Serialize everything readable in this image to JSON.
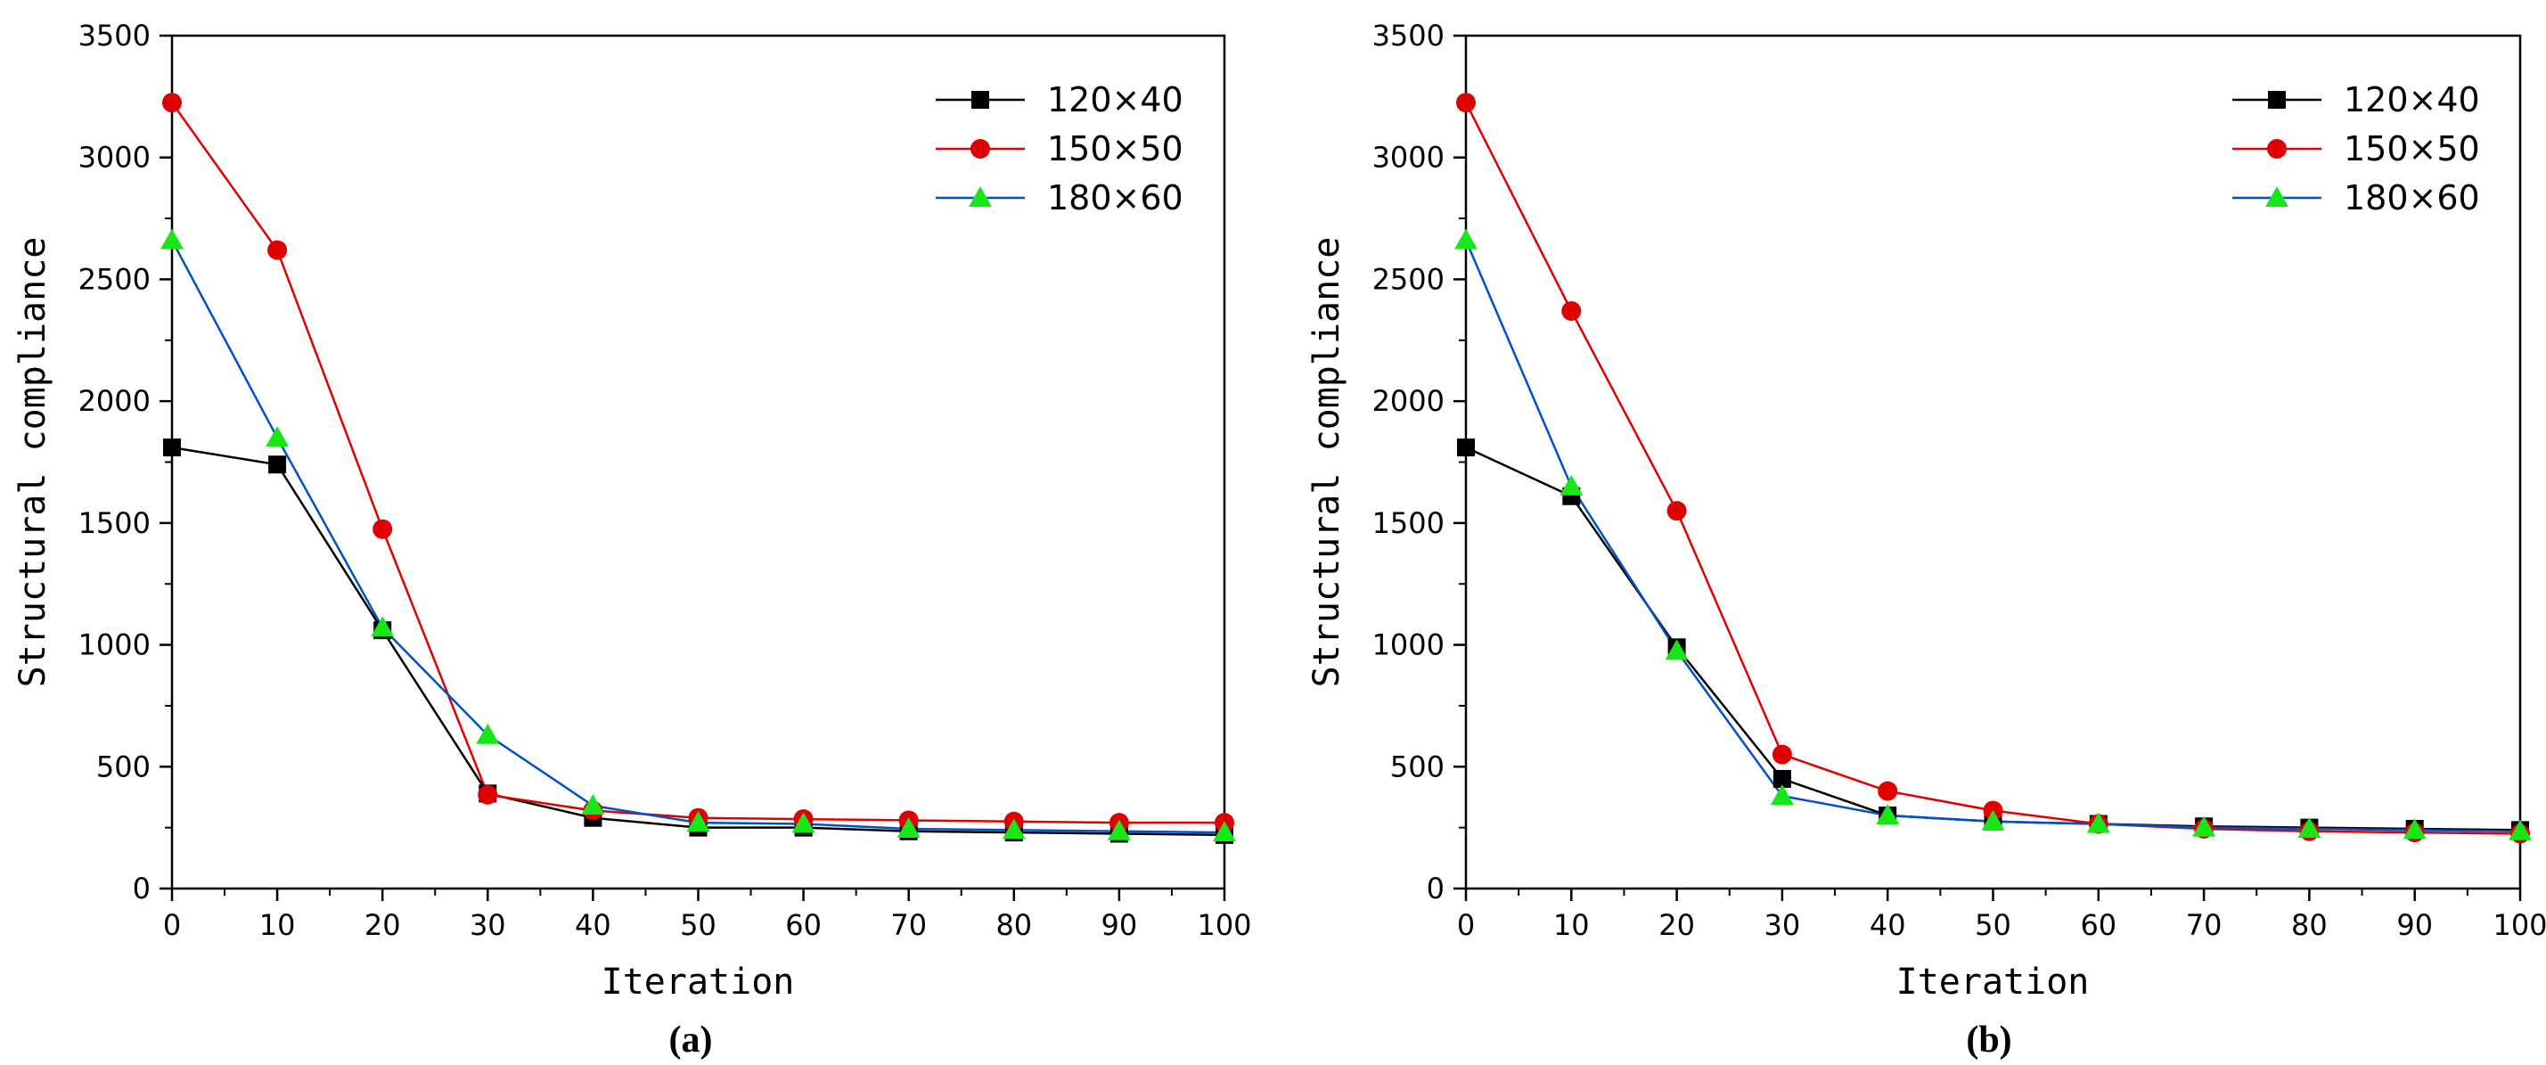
{
  "chart_data": [
    {
      "type": "line",
      "title": "",
      "panel_label": "(a)",
      "xlabel": "Iteration",
      "ylabel": "Structural compliance",
      "xlim": [
        0,
        100
      ],
      "ylim": [
        0,
        3500
      ],
      "x_ticks": [
        "0",
        "10",
        "20",
        "30",
        "40",
        "50",
        "60",
        "70",
        "80",
        "90",
        "100"
      ],
      "y_ticks": [
        "0",
        "500",
        "1000",
        "1500",
        "2000",
        "2500",
        "3000",
        "3500"
      ],
      "grid": false,
      "legend_position": "top-right",
      "x": [
        0,
        10,
        20,
        30,
        40,
        50,
        60,
        70,
        80,
        90,
        100
      ],
      "series": [
        {
          "name": "120×40",
          "color": "#000000",
          "marker": "square",
          "values": [
            1810,
            1740,
            1060,
            390,
            290,
            250,
            250,
            235,
            230,
            225,
            220
          ]
        },
        {
          "name": "150×50",
          "color": "#e00000",
          "marker": "circle",
          "values": [
            3225,
            2620,
            1475,
            385,
            320,
            290,
            285,
            280,
            275,
            270,
            270
          ]
        },
        {
          "name": "180×60",
          "color": "#0050c8",
          "marker": "triangle",
          "values": [
            2660,
            1850,
            1070,
            630,
            340,
            270,
            265,
            245,
            240,
            235,
            230
          ]
        }
      ]
    },
    {
      "type": "line",
      "title": "",
      "panel_label": "(b)",
      "xlabel": "Iteration",
      "ylabel": "Structural compliance",
      "xlim": [
        0,
        100
      ],
      "ylim": [
        0,
        3500
      ],
      "x_ticks": [
        "0",
        "10",
        "20",
        "30",
        "40",
        "50",
        "60",
        "70",
        "80",
        "90",
        "100"
      ],
      "y_ticks": [
        "0",
        "500",
        "1000",
        "1500",
        "2000",
        "2500",
        "3000",
        "3500"
      ],
      "grid": false,
      "legend_position": "top-right",
      "x": [
        0,
        10,
        20,
        30,
        40,
        50,
        60,
        70,
        80,
        90,
        100
      ],
      "series": [
        {
          "name": "120×40",
          "color": "#000000",
          "marker": "square",
          "values": [
            1810,
            1610,
            990,
            450,
            300,
            275,
            265,
            255,
            250,
            245,
            240
          ]
        },
        {
          "name": "150×50",
          "color": "#e00000",
          "marker": "circle",
          "values": [
            3225,
            2370,
            1550,
            550,
            400,
            320,
            265,
            245,
            235,
            230,
            225
          ]
        },
        {
          "name": "180×60",
          "color": "#0050c8",
          "marker": "triangle",
          "values": [
            2660,
            1650,
            975,
            380,
            300,
            275,
            265,
            250,
            245,
            240,
            235
          ]
        }
      ]
    }
  ]
}
